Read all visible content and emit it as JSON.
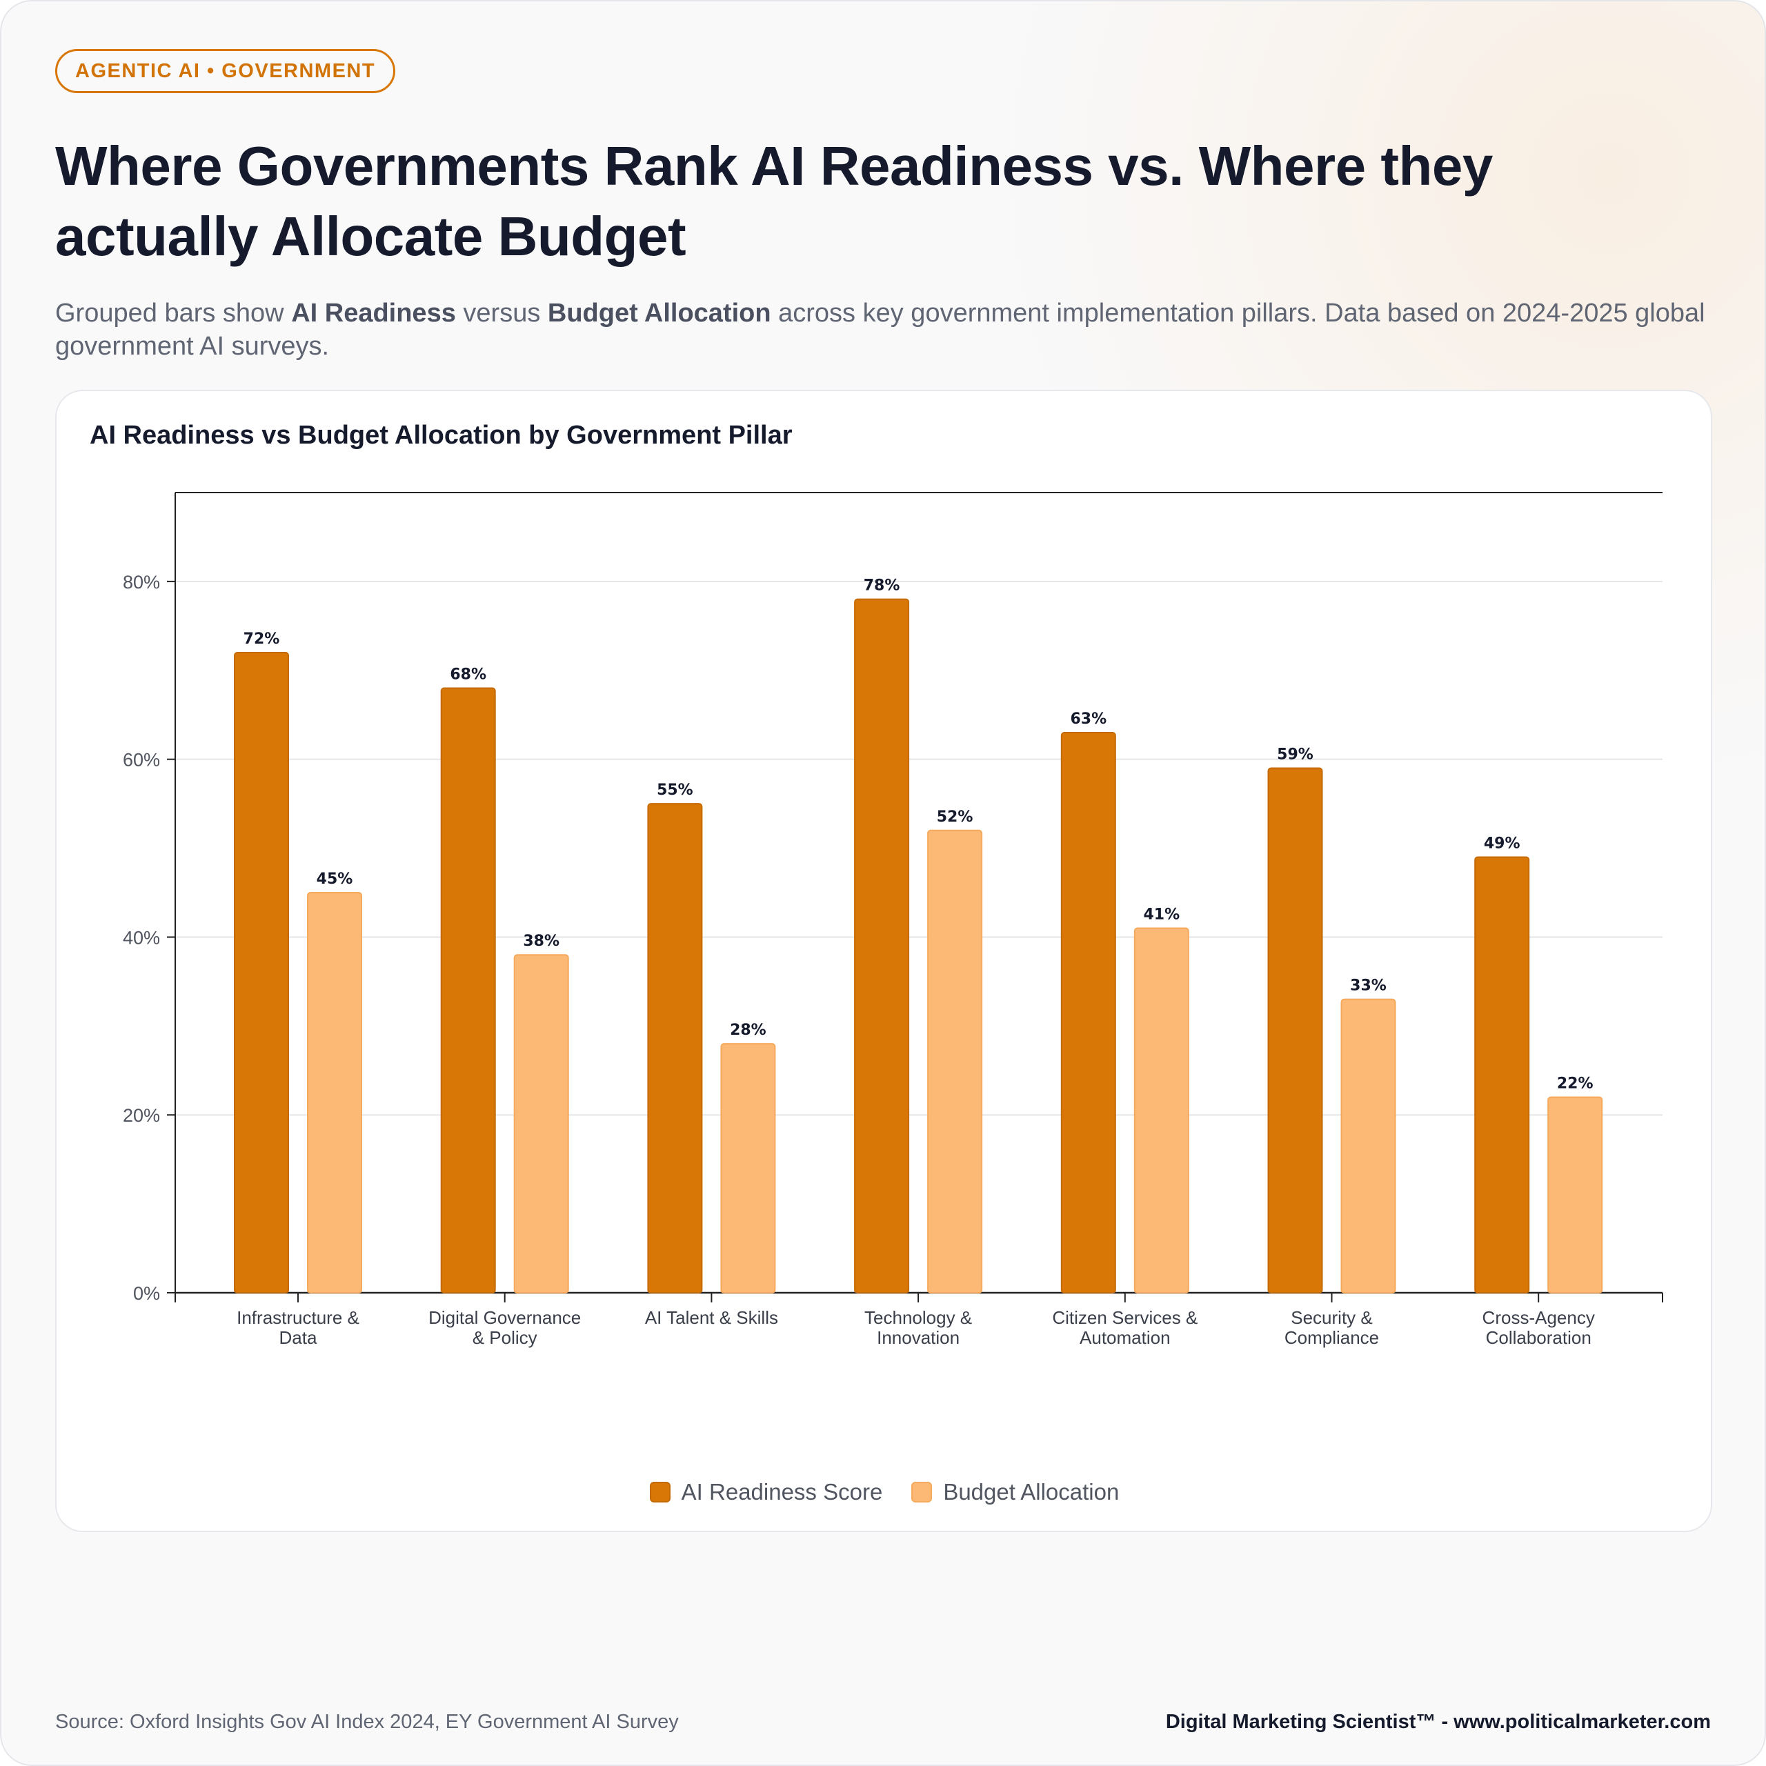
{
  "header": {
    "tag": "AGENTIC AI • GOVERNMENT",
    "title": "Where Governments Rank AI Readiness vs. Where they actually Allocate Budget",
    "subtitle_parts": {
      "prefix": "Grouped bars show ",
      "strong1": "AI Readiness",
      "mid": " versus ",
      "strong2": "Budget Allocation",
      "suffix": " across key government implementation pillars. Data based on 2024-2025 global government AI surveys."
    }
  },
  "chart_data": {
    "type": "bar",
    "title": "AI Readiness vs Budget Allocation by Government Pillar",
    "xlabel": "",
    "ylabel": "",
    "ylim": [
      0,
      90
    ],
    "yticks": [
      0,
      20,
      40,
      60,
      80
    ],
    "ytick_labels": [
      "0%",
      "20%",
      "40%",
      "60%",
      "80%"
    ],
    "categories": [
      [
        "Infrastructure &",
        "Data"
      ],
      [
        "Digital Governance",
        "& Policy"
      ],
      [
        "AI Talent & Skills"
      ],
      [
        "Technology &",
        "Innovation"
      ],
      [
        "Citizen Services &",
        "Automation"
      ],
      [
        "Security &",
        "Compliance"
      ],
      [
        "Cross-Agency",
        "Collaboration"
      ]
    ],
    "series": [
      {
        "name": "AI Readiness Score",
        "values": [
          72,
          68,
          55,
          78,
          63,
          59,
          49
        ],
        "color": "#d97706"
      },
      {
        "name": "Budget Allocation",
        "values": [
          45,
          38,
          28,
          52,
          41,
          33,
          22
        ],
        "color": "#fbb975"
      }
    ],
    "value_suffix": "%",
    "grid": true,
    "legend_position": "bottom"
  },
  "footer": {
    "source": "Source: Oxford Insights Gov AI Index 2024, EY Government AI Survey",
    "brand": "Digital Marketing Scientist™ - www.politicalmarketer.com"
  }
}
